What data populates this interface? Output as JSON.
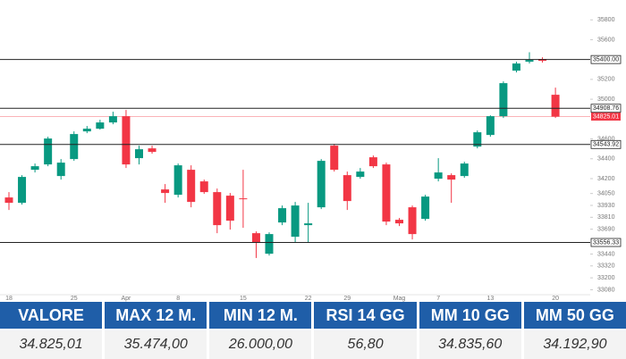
{
  "chart_data": {
    "type": "candlestick",
    "categories": [
      "18",
      null,
      null,
      null,
      null,
      "25",
      null,
      null,
      null,
      "Apr",
      null,
      null,
      null,
      "8",
      null,
      null,
      null,
      null,
      "15",
      null,
      null,
      null,
      null,
      "22",
      null,
      null,
      "29",
      null,
      null,
      null,
      "Mag",
      null,
      null,
      "7",
      null,
      null,
      null,
      "13",
      null,
      null,
      null,
      null,
      "20"
    ],
    "open": [
      34010,
      33956,
      34289,
      34343,
      34226,
      34397,
      34676,
      34703,
      34766,
      34829,
      34406,
      34505,
      34091,
      34037,
      34289,
      34172,
      34064,
      34028,
      34001,
      33650,
      33443,
      33758,
      33614,
      33731,
      33911,
      34532,
      34235,
      34217,
      34415,
      34343,
      33785,
      33911,
      33794,
      34199,
      34235,
      34226,
      34523,
      34640,
      34829,
      35288,
      35378,
      35405,
      35045
    ],
    "close": [
      33956,
      34217,
      34325,
      34604,
      34361,
      34649,
      34703,
      34766,
      34829,
      34343,
      34496,
      34469,
      34055,
      34334,
      33965,
      34064,
      33731,
      33776,
      33992,
      33560,
      33641,
      33902,
      33929,
      33749,
      34379,
      34289,
      33974,
      34271,
      34325,
      33767,
      33749,
      33641,
      34019,
      34262,
      34190,
      34352,
      34667,
      34829,
      35162,
      35360,
      35396,
      35387,
      34825
    ],
    "high": [
      34064,
      34235,
      34352,
      34622,
      34397,
      34676,
      34730,
      34793,
      34874,
      34892,
      34532,
      34532,
      34145,
      34352,
      34334,
      34190,
      34100,
      34055,
      34289,
      33668,
      33659,
      33929,
      33965,
      33956,
      34397,
      34550,
      34271,
      34307,
      34433,
      34361,
      33803,
      33929,
      34037,
      34406,
      34253,
      34370,
      34685,
      34838,
      35180,
      35378,
      35474,
      35423,
      35117
    ],
    "low": [
      33884,
      33938,
      34262,
      34325,
      34190,
      34379,
      34658,
      34694,
      34748,
      34307,
      34343,
      34451,
      33956,
      34010,
      33911,
      34046,
      33650,
      33686,
      33704,
      33400,
      33425,
      33731,
      33560,
      33560,
      33893,
      34271,
      33884,
      34199,
      34307,
      33731,
      33722,
      33587,
      33776,
      34172,
      33956,
      34208,
      34505,
      34622,
      34811,
      35270,
      35360,
      35369,
      34811
    ],
    "up_color": "#089981",
    "down_color": "#f23645",
    "ylim": [
      33030,
      36000
    ],
    "yticks": [
      33080,
      33200,
      33320,
      33440,
      33690,
      33810,
      33930,
      34050,
      34200,
      34400,
      34600,
      35000,
      35200,
      35600,
      35800
    ],
    "levels": [
      {
        "value": 35400,
        "label": "35400.00"
      },
      {
        "value": 34908.76,
        "label": "34908.76"
      },
      {
        "value": 34543.92,
        "label": "34543.92"
      },
      {
        "value": 33556.33,
        "label": "33556.33"
      }
    ],
    "last_price": {
      "value": 34825.01,
      "label": "34825.01"
    }
  },
  "table": {
    "headers": [
      "VALORE",
      "MAX 12 M.",
      "MIN 12 M.",
      "RSI 14 GG",
      "MM 10 GG",
      "MM 50 GG"
    ],
    "rows": [
      [
        "34.825,01",
        "35.474,00",
        "26.000,00",
        "56,80",
        "34.835,60",
        "34.192,90"
      ]
    ]
  }
}
